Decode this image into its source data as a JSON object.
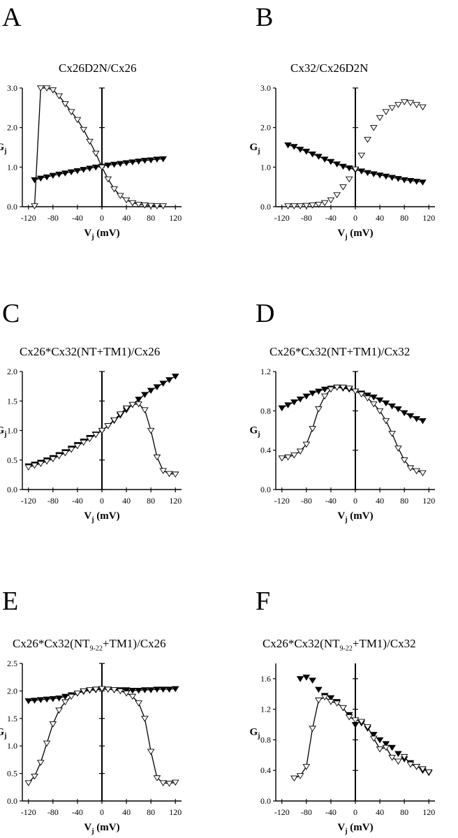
{
  "figure": {
    "panels": [
      {
        "letter": "A",
        "title": "Cx26D2N/Cx26"
      },
      {
        "letter": "B",
        "title": "Cx32/Cx26D2N"
      },
      {
        "letter": "C",
        "title": "Cx26*Cx32(NT+TM1)/Cx26"
      },
      {
        "letter": "D",
        "title": "Cx26*Cx32(NT+TM1)/Cx32"
      },
      {
        "letter": "E",
        "title_pre": "Cx26*Cx32(NT",
        "title_sub": "9-22",
        "title_post": "+TM1)/Cx26"
      },
      {
        "letter": "F",
        "title_pre": "Cx26*Cx32(NT",
        "title_sub": "9-22",
        "title_post": "+TM1)/Cx32"
      }
    ]
  },
  "chart_data": [
    {
      "type": "scatter",
      "title": "Cx26D2N/Cx26",
      "xlabel": "Vj (mV)",
      "ylabel": "Gj",
      "xlim": [
        -130,
        130
      ],
      "ylim": [
        0,
        3.0
      ],
      "xticks": [
        "-120",
        "-80",
        "-40",
        "0",
        "40",
        "80",
        "120"
      ],
      "yticks": [
        "0.0",
        "1.0",
        "2.0",
        "3.0"
      ],
      "series": [
        {
          "marker": "filled-triangle",
          "fit_line": true,
          "x": [
            -110,
            -100,
            -90,
            -80,
            -70,
            -60,
            -50,
            -40,
            -30,
            -20,
            -10,
            0,
            10,
            20,
            30,
            40,
            50,
            60,
            70,
            80,
            90,
            100
          ],
          "y": [
            0.68,
            0.72,
            0.75,
            0.79,
            0.82,
            0.85,
            0.88,
            0.91,
            0.94,
            0.97,
            1.0,
            1.02,
            1.05,
            1.07,
            1.09,
            1.11,
            1.13,
            1.15,
            1.17,
            1.18,
            1.2,
            1.21
          ]
        },
        {
          "marker": "open-triangle",
          "fit_line": true,
          "x": [
            -110,
            -100,
            -90,
            -80,
            -70,
            -60,
            -50,
            -40,
            -30,
            -20,
            -10,
            0,
            10,
            20,
            30,
            40,
            50,
            60,
            70,
            80,
            90,
            100
          ],
          "y": [
            0.02,
            3.0,
            3.0,
            2.95,
            2.8,
            2.6,
            2.4,
            2.2,
            1.95,
            1.65,
            1.35,
            1.0,
            0.7,
            0.45,
            0.28,
            0.17,
            0.1,
            0.06,
            0.04,
            0.03,
            0.02,
            0.02
          ]
        }
      ]
    },
    {
      "type": "scatter",
      "title": "Cx32/Cx26D2N",
      "xlabel": "Vj (mV)",
      "ylabel": "Gj",
      "xlim": [
        -130,
        130
      ],
      "ylim": [
        0,
        3.0
      ],
      "xticks": [
        "-120",
        "-80",
        "-40",
        "0",
        "40",
        "80",
        "120"
      ],
      "yticks": [
        "0.0",
        "1.0",
        "2.0",
        "3.0"
      ],
      "series": [
        {
          "marker": "filled-triangle",
          "fit_line": true,
          "x": [
            -110,
            -100,
            -90,
            -80,
            -70,
            -60,
            -50,
            -40,
            -30,
            -20,
            -10,
            0,
            10,
            20,
            30,
            40,
            50,
            60,
            70,
            80,
            90,
            100,
            110
          ],
          "y": [
            1.56,
            1.52,
            1.45,
            1.4,
            1.33,
            1.27,
            1.2,
            1.14,
            1.08,
            1.02,
            0.98,
            0.93,
            0.9,
            0.86,
            0.83,
            0.8,
            0.77,
            0.74,
            0.71,
            0.68,
            0.66,
            0.64,
            0.62
          ]
        },
        {
          "marker": "open-triangle",
          "fit_line": false,
          "x": [
            -110,
            -100,
            -90,
            -80,
            -70,
            -60,
            -50,
            -40,
            -30,
            -20,
            -10,
            0,
            10,
            20,
            30,
            40,
            50,
            60,
            70,
            80,
            90,
            100,
            110
          ],
          "y": [
            0.02,
            0.02,
            0.02,
            0.03,
            0.04,
            0.06,
            0.1,
            0.17,
            0.3,
            0.5,
            0.7,
            0.95,
            1.3,
            1.7,
            2.0,
            2.25,
            2.4,
            2.5,
            2.58,
            2.65,
            2.63,
            2.58,
            2.52
          ]
        }
      ]
    },
    {
      "type": "scatter",
      "title": "Cx26*Cx32(NT+TM1)/Cx26",
      "xlabel": "Vj (mV)",
      "ylabel": "Gj",
      "xlim": [
        -130,
        130
      ],
      "ylim": [
        0,
        2.0
      ],
      "xticks": [
        "-120",
        "-80",
        "-40",
        "0",
        "40",
        "80",
        "120"
      ],
      "yticks": [
        "0.0",
        "0.5",
        "1.0",
        "1.5",
        "2.0"
      ],
      "series": [
        {
          "marker": "filled-triangle",
          "fit_line": true,
          "x": [
            -120,
            -110,
            -100,
            -90,
            -80,
            -70,
            -60,
            -50,
            -40,
            -30,
            -20,
            -10,
            0,
            10,
            20,
            30,
            40,
            50,
            60,
            70,
            80,
            90,
            100,
            110,
            120
          ],
          "y": [
            0.4,
            0.43,
            0.46,
            0.5,
            0.54,
            0.59,
            0.64,
            0.7,
            0.76,
            0.82,
            0.88,
            0.94,
            1.0,
            1.08,
            1.17,
            1.26,
            1.35,
            1.44,
            1.53,
            1.61,
            1.68,
            1.74,
            1.8,
            1.86,
            1.92
          ]
        },
        {
          "marker": "open-triangle",
          "fit_line": true,
          "x": [
            -120,
            -110,
            -100,
            -90,
            -80,
            -70,
            -60,
            -50,
            -40,
            -30,
            -20,
            -10,
            0,
            10,
            20,
            30,
            40,
            50,
            60,
            70,
            80,
            90,
            100,
            110,
            120
          ],
          "y": [
            0.38,
            0.41,
            0.44,
            0.48,
            0.52,
            0.57,
            0.62,
            0.68,
            0.74,
            0.8,
            0.86,
            0.93,
            1.0,
            1.08,
            1.18,
            1.28,
            1.38,
            1.44,
            1.45,
            1.35,
            1.0,
            0.55,
            0.32,
            0.27,
            0.26
          ]
        }
      ]
    },
    {
      "type": "scatter",
      "title": "Cx26*Cx32(NT+TM1)/Cx32",
      "xlabel": "Vj (mV)",
      "ylabel": "Gj",
      "xlim": [
        -130,
        130
      ],
      "ylim": [
        0,
        1.2
      ],
      "xticks": [
        "-120",
        "-80",
        "-40",
        "0",
        "40",
        "80",
        "120"
      ],
      "yticks": [
        "0.0",
        "0.4",
        "0.8",
        "1.2"
      ],
      "series": [
        {
          "marker": "filled-triangle",
          "fit_line": true,
          "x": [
            -120,
            -110,
            -100,
            -90,
            -80,
            -70,
            -60,
            -50,
            -40,
            -30,
            -20,
            -10,
            0,
            10,
            20,
            30,
            40,
            50,
            60,
            70,
            80,
            90,
            100,
            110
          ],
          "y": [
            0.83,
            0.86,
            0.89,
            0.92,
            0.95,
            0.98,
            1.0,
            1.02,
            1.03,
            1.04,
            1.03,
            1.02,
            1.0,
            0.98,
            0.96,
            0.94,
            0.91,
            0.88,
            0.85,
            0.82,
            0.78,
            0.75,
            0.72,
            0.7
          ]
        },
        {
          "marker": "open-triangle",
          "fit_line": true,
          "x": [
            -120,
            -110,
            -100,
            -90,
            -80,
            -70,
            -60,
            -50,
            -40,
            -30,
            -20,
            -10,
            0,
            10,
            20,
            30,
            40,
            50,
            60,
            70,
            80,
            90,
            100,
            110
          ],
          "y": [
            0.32,
            0.33,
            0.35,
            0.39,
            0.46,
            0.62,
            0.82,
            0.95,
            1.02,
            1.04,
            1.04,
            1.03,
            1.0,
            0.97,
            0.93,
            0.87,
            0.8,
            0.7,
            0.57,
            0.42,
            0.3,
            0.22,
            0.19,
            0.17
          ]
        }
      ]
    },
    {
      "type": "scatter",
      "title": "Cx26*Cx32(NT9-22+TM1)/Cx26",
      "xlabel": "Vj (mV)",
      "ylabel": "Gj",
      "xlim": [
        -130,
        130
      ],
      "ylim": [
        0,
        2.5
      ],
      "xticks": [
        "-120",
        "-80",
        "-40",
        "0",
        "40",
        "80",
        "120"
      ],
      "yticks": [
        "0.0",
        "0.5",
        "1.0",
        "1.5",
        "2.0",
        "2.5"
      ],
      "series": [
        {
          "marker": "filled-triangle",
          "fit_line": true,
          "x": [
            -120,
            -110,
            -100,
            -90,
            -80,
            -70,
            -60,
            -50,
            -40,
            -30,
            -20,
            -10,
            0,
            10,
            20,
            30,
            40,
            50,
            60,
            70,
            80,
            90,
            100,
            110,
            120
          ],
          "y": [
            1.82,
            1.83,
            1.84,
            1.85,
            1.86,
            1.87,
            1.9,
            1.93,
            1.96,
            1.99,
            2.01,
            2.02,
            2.03,
            2.03,
            2.02,
            2.02,
            2.02,
            2.01,
            2.01,
            2.02,
            2.02,
            2.03,
            2.03,
            2.03,
            2.04
          ]
        },
        {
          "marker": "open-triangle",
          "fit_line": true,
          "x": [
            -120,
            -110,
            -100,
            -90,
            -80,
            -70,
            -60,
            -50,
            -40,
            -30,
            -20,
            -10,
            0,
            10,
            20,
            30,
            40,
            50,
            60,
            70,
            80,
            90,
            100,
            110,
            120
          ],
          "y": [
            0.33,
            0.45,
            0.7,
            1.05,
            1.4,
            1.65,
            1.8,
            1.9,
            1.96,
            2.0,
            2.02,
            2.03,
            2.04,
            2.03,
            2.02,
            2.0,
            1.96,
            1.9,
            1.78,
            1.5,
            0.9,
            0.42,
            0.33,
            0.32,
            0.34
          ]
        }
      ]
    },
    {
      "type": "scatter",
      "title": "Cx26*Cx32(NT9-22+TM1)/Cx32",
      "xlabel": "Vj (mV)",
      "ylabel": "Gj",
      "xlim": [
        -130,
        130
      ],
      "ylim": [
        0,
        1.8
      ],
      "xticks": [
        "-120",
        "-80",
        "-40",
        "0",
        "40",
        "80",
        "120"
      ],
      "yticks": [
        "0.0",
        "0.4",
        "0.8",
        "1.2",
        "1.6"
      ],
      "series": [
        {
          "marker": "filled-triangle",
          "fit_line": false,
          "x": [
            -90,
            -80,
            -70,
            -60,
            -50,
            -40,
            -30,
            -20,
            -10,
            0,
            10,
            20,
            30,
            40,
            50,
            60,
            70,
            80,
            90,
            100,
            110,
            120
          ],
          "y": [
            1.6,
            1.62,
            1.58,
            1.46,
            1.38,
            1.35,
            1.3,
            1.22,
            1.13,
            1.0,
            1.02,
            0.95,
            0.87,
            0.8,
            0.75,
            0.7,
            0.62,
            0.55,
            0.5,
            0.45,
            0.4,
            0.37
          ]
        },
        {
          "marker": "open-triangle",
          "fit_line": true,
          "x": [
            -100,
            -90,
            -80,
            -70,
            -60,
            -50,
            -40,
            -30,
            -20,
            -10,
            0,
            10,
            20,
            30,
            40,
            50,
            60,
            70,
            80,
            90,
            100,
            110,
            120
          ],
          "y": [
            0.3,
            0.33,
            0.45,
            0.95,
            1.32,
            1.36,
            1.3,
            1.28,
            1.22,
            1.1,
            1.06,
            1.04,
            0.97,
            0.82,
            0.68,
            0.7,
            0.57,
            0.52,
            0.58,
            0.48,
            0.45,
            0.42,
            0.38
          ]
        }
      ]
    }
  ]
}
